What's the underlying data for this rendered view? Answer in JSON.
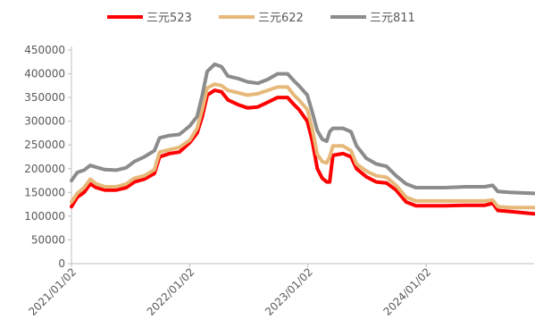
{
  "chart_data": {
    "type": "line",
    "title": "",
    "xlabel": "",
    "ylabel": "",
    "ylim": [
      0,
      450000
    ],
    "yticks": [
      0,
      50000,
      100000,
      150000,
      200000,
      250000,
      300000,
      350000,
      400000,
      450000
    ],
    "ytick_labels": [
      "0",
      "50000",
      "100000",
      "150000",
      "200000",
      "250000",
      "300000",
      "350000",
      "400000",
      "450000"
    ],
    "xlim": [
      "2021-01-02",
      "2024-11-30"
    ],
    "xtick_labels": [
      "2021/01/02",
      "2022/01/02",
      "2023/01/02",
      "2024/01/02"
    ],
    "xtick_dates": [
      "2021-01-02",
      "2022-01-02",
      "2023-01-02",
      "2024-01-02"
    ],
    "grid": false,
    "legend_position": "top",
    "series": [
      {
        "name": "三元523",
        "color": "#FF0000",
        "points": [
          [
            "2021-01-02",
            120000
          ],
          [
            "2021-01-20",
            140000
          ],
          [
            "2021-02-10",
            150000
          ],
          [
            "2021-03-01",
            168000
          ],
          [
            "2021-03-20",
            160000
          ],
          [
            "2021-04-15",
            155000
          ],
          [
            "2021-05-20",
            155000
          ],
          [
            "2021-06-20",
            160000
          ],
          [
            "2021-07-15",
            172000
          ],
          [
            "2021-08-15",
            178000
          ],
          [
            "2021-09-15",
            190000
          ],
          [
            "2021-10-01",
            225000
          ],
          [
            "2021-11-01",
            232000
          ],
          [
            "2021-12-01",
            235000
          ],
          [
            "2022-01-02",
            255000
          ],
          [
            "2022-01-25",
            275000
          ],
          [
            "2022-02-10",
            310000
          ],
          [
            "2022-02-25",
            355000
          ],
          [
            "2022-03-20",
            365000
          ],
          [
            "2022-04-10",
            362000
          ],
          [
            "2022-04-30",
            345000
          ],
          [
            "2022-05-31",
            335000
          ],
          [
            "2022-06-30",
            328000
          ],
          [
            "2022-07-31",
            330000
          ],
          [
            "2022-08-31",
            340000
          ],
          [
            "2022-09-30",
            350000
          ],
          [
            "2022-10-31",
            350000
          ],
          [
            "2022-11-20",
            335000
          ],
          [
            "2022-12-05",
            325000
          ],
          [
            "2022-12-31",
            300000
          ],
          [
            "2023-01-15",
            260000
          ],
          [
            "2023-01-31",
            200000
          ],
          [
            "2023-02-15",
            180000
          ],
          [
            "2023-03-01",
            172000
          ],
          [
            "2023-03-10",
            172000
          ],
          [
            "2023-03-20",
            228000
          ],
          [
            "2023-04-20",
            232000
          ],
          [
            "2023-05-15",
            225000
          ],
          [
            "2023-06-01",
            200000
          ],
          [
            "2023-07-01",
            183000
          ],
          [
            "2023-08-01",
            172000
          ],
          [
            "2023-09-01",
            170000
          ],
          [
            "2023-10-01",
            155000
          ],
          [
            "2023-11-01",
            130000
          ],
          [
            "2023-12-01",
            122000
          ],
          [
            "2024-01-02",
            122000
          ],
          [
            "2024-03-01",
            122000
          ],
          [
            "2024-05-01",
            123000
          ],
          [
            "2024-07-01",
            123000
          ],
          [
            "2024-07-25",
            127000
          ],
          [
            "2024-08-10",
            112000
          ],
          [
            "2024-09-15",
            110000
          ],
          [
            "2024-11-30",
            105000
          ]
        ]
      },
      {
        "name": "三元622",
        "color": "#E6B97A",
        "points": [
          [
            "2021-01-02",
            130000
          ],
          [
            "2021-01-20",
            148000
          ],
          [
            "2021-02-10",
            160000
          ],
          [
            "2021-03-01",
            178000
          ],
          [
            "2021-03-20",
            168000
          ],
          [
            "2021-04-15",
            162000
          ],
          [
            "2021-05-20",
            162000
          ],
          [
            "2021-06-20",
            168000
          ],
          [
            "2021-07-15",
            180000
          ],
          [
            "2021-08-15",
            185000
          ],
          [
            "2021-09-15",
            198000
          ],
          [
            "2021-10-01",
            235000
          ],
          [
            "2021-11-01",
            240000
          ],
          [
            "2021-12-01",
            245000
          ],
          [
            "2022-01-02",
            260000
          ],
          [
            "2022-01-25",
            285000
          ],
          [
            "2022-02-10",
            325000
          ],
          [
            "2022-02-25",
            370000
          ],
          [
            "2022-03-20",
            378000
          ],
          [
            "2022-04-10",
            375000
          ],
          [
            "2022-04-30",
            365000
          ],
          [
            "2022-05-31",
            360000
          ],
          [
            "2022-06-30",
            355000
          ],
          [
            "2022-07-31",
            358000
          ],
          [
            "2022-08-31",
            365000
          ],
          [
            "2022-09-30",
            372000
          ],
          [
            "2022-10-31",
            372000
          ],
          [
            "2022-11-20",
            355000
          ],
          [
            "2022-12-05",
            345000
          ],
          [
            "2022-12-31",
            325000
          ],
          [
            "2023-01-15",
            285000
          ],
          [
            "2023-01-31",
            230000
          ],
          [
            "2023-02-15",
            215000
          ],
          [
            "2023-03-01",
            212000
          ],
          [
            "2023-03-10",
            225000
          ],
          [
            "2023-03-20",
            248000
          ],
          [
            "2023-04-20",
            248000
          ],
          [
            "2023-05-15",
            238000
          ],
          [
            "2023-06-01",
            210000
          ],
          [
            "2023-07-01",
            195000
          ],
          [
            "2023-08-01",
            185000
          ],
          [
            "2023-09-01",
            182000
          ],
          [
            "2023-10-01",
            165000
          ],
          [
            "2023-11-01",
            140000
          ],
          [
            "2023-12-01",
            132000
          ],
          [
            "2024-01-02",
            132000
          ],
          [
            "2024-03-01",
            132000
          ],
          [
            "2024-05-01",
            132000
          ],
          [
            "2024-07-01",
            132000
          ],
          [
            "2024-07-25",
            134000
          ],
          [
            "2024-08-10",
            120000
          ],
          [
            "2024-09-15",
            118000
          ],
          [
            "2024-11-30",
            118000
          ]
        ]
      },
      {
        "name": "三元811",
        "color": "#8C8C8C",
        "points": [
          [
            "2021-01-02",
            175000
          ],
          [
            "2021-01-20",
            192000
          ],
          [
            "2021-02-10",
            197000
          ],
          [
            "2021-03-01",
            207000
          ],
          [
            "2021-03-20",
            203000
          ],
          [
            "2021-04-15",
            198000
          ],
          [
            "2021-05-20",
            197000
          ],
          [
            "2021-06-20",
            202000
          ],
          [
            "2021-07-15",
            215000
          ],
          [
            "2021-08-15",
            225000
          ],
          [
            "2021-09-15",
            238000
          ],
          [
            "2021-10-01",
            265000
          ],
          [
            "2021-11-01",
            270000
          ],
          [
            "2021-12-01",
            272000
          ],
          [
            "2022-01-02",
            290000
          ],
          [
            "2022-01-25",
            310000
          ],
          [
            "2022-02-10",
            355000
          ],
          [
            "2022-02-25",
            405000
          ],
          [
            "2022-03-20",
            420000
          ],
          [
            "2022-04-10",
            415000
          ],
          [
            "2022-04-30",
            395000
          ],
          [
            "2022-05-31",
            390000
          ],
          [
            "2022-06-30",
            383000
          ],
          [
            "2022-07-31",
            380000
          ],
          [
            "2022-08-31",
            388000
          ],
          [
            "2022-09-30",
            400000
          ],
          [
            "2022-10-31",
            400000
          ],
          [
            "2022-11-20",
            385000
          ],
          [
            "2022-12-05",
            375000
          ],
          [
            "2022-12-31",
            355000
          ],
          [
            "2023-01-15",
            320000
          ],
          [
            "2023-01-31",
            280000
          ],
          [
            "2023-02-15",
            262000
          ],
          [
            "2023-03-01",
            258000
          ],
          [
            "2023-03-10",
            278000
          ],
          [
            "2023-03-20",
            285000
          ],
          [
            "2023-04-20",
            285000
          ],
          [
            "2023-05-15",
            278000
          ],
          [
            "2023-06-01",
            248000
          ],
          [
            "2023-07-01",
            222000
          ],
          [
            "2023-08-01",
            210000
          ],
          [
            "2023-09-01",
            205000
          ],
          [
            "2023-10-01",
            185000
          ],
          [
            "2023-11-01",
            168000
          ],
          [
            "2023-12-01",
            160000
          ],
          [
            "2024-01-02",
            160000
          ],
          [
            "2024-03-01",
            160000
          ],
          [
            "2024-05-01",
            162000
          ],
          [
            "2024-07-01",
            162000
          ],
          [
            "2024-07-25",
            165000
          ],
          [
            "2024-08-10",
            152000
          ],
          [
            "2024-09-15",
            150000
          ],
          [
            "2024-11-30",
            148000
          ]
        ]
      }
    ]
  }
}
